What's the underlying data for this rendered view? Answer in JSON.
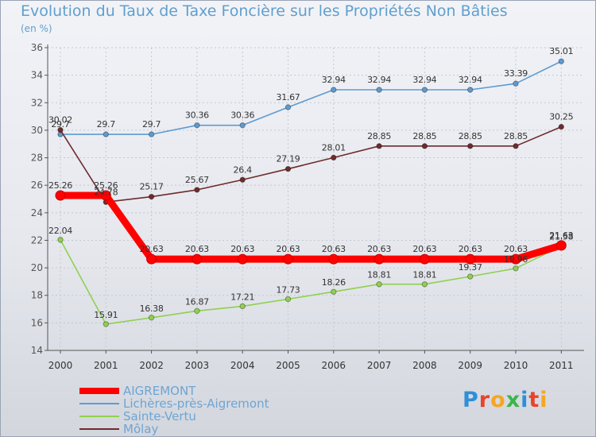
{
  "header": {
    "title": "Evolution du Taux de Taxe Foncière sur les Propriétés Non Bâties",
    "unit": "(en %)"
  },
  "logo": {
    "text": "Proxiti"
  },
  "chart_data": {
    "type": "line",
    "title": "Evolution du Taux de Taxe Foncière sur les Propriétés Non Bâties",
    "ylabel": "(en %)",
    "xlabel": "",
    "x": [
      "2000",
      "2001",
      "2002",
      "2003",
      "2004",
      "2005",
      "2006",
      "2007",
      "2008",
      "2009",
      "2010",
      "2011"
    ],
    "ylim": [
      14,
      36
    ],
    "yticks": [
      "14",
      "16",
      "18",
      "20",
      "22",
      "24",
      "26",
      "28",
      "30",
      "32",
      "34",
      "36"
    ],
    "grid": true,
    "legend_position": "bottom-left",
    "series": [
      {
        "name": "AIGREMONT",
        "color": "#ff0000",
        "values": [
          25.26,
          25.26,
          20.63,
          20.63,
          20.63,
          20.63,
          20.63,
          20.63,
          20.63,
          20.63,
          20.63,
          21.63
        ],
        "labels": [
          "25.26",
          "25.26",
          "20.63",
          "20.63",
          "20.63",
          "20.63",
          "20.63",
          "20.63",
          "20.63",
          "20.63",
          "20.63",
          "21.63"
        ]
      },
      {
        "name": "Lichères-près-Aigremont",
        "color": "#5e9bd0",
        "values": [
          29.7,
          29.7,
          29.7,
          30.36,
          30.36,
          31.67,
          32.94,
          32.94,
          32.94,
          32.94,
          33.39,
          35.01
        ],
        "labels": [
          "29.7",
          "29.7",
          "29.7",
          "30.36",
          "30.36",
          "31.67",
          "32.94",
          "32.94",
          "32.94",
          "32.94",
          "33.39",
          "35.01"
        ]
      },
      {
        "name": "Sainte-Vertu",
        "color": "#8fd14f",
        "values": [
          22.04,
          15.91,
          16.38,
          16.87,
          17.21,
          17.73,
          18.26,
          18.81,
          18.81,
          19.37,
          19.96,
          21.58
        ],
        "labels": [
          "22.04",
          "15.91",
          "16.38",
          "16.87",
          "17.21",
          "17.73",
          "18.26",
          "18.81",
          "18.81",
          "19.37",
          "19.96",
          "21.58"
        ]
      },
      {
        "name": "Môlay",
        "color": "#6e2c2c",
        "values": [
          30.02,
          24.78,
          25.17,
          25.67,
          26.4,
          27.19,
          28.01,
          28.85,
          28.85,
          28.85,
          28.85,
          30.25
        ],
        "labels": [
          "30.02",
          "24.78",
          "25.17",
          "25.67",
          "26.4",
          "27.19",
          "28.01",
          "28.85",
          "28.85",
          "28.85",
          "28.85",
          "30.25"
        ]
      }
    ]
  }
}
